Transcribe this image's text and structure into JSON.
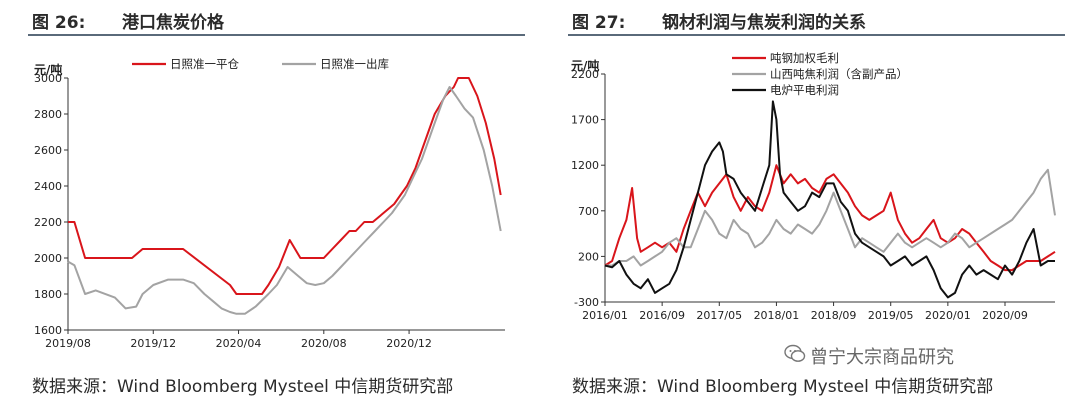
{
  "left": {
    "fig_no": "图 26:",
    "title": "港口焦炭价格",
    "source": "数据来源：Wind Bloomberg Mysteel 中信期货研究部"
  },
  "right": {
    "fig_no": "图 27:",
    "title": "钢材利润与焦炭利润的关系",
    "source": "数据来源：Wind Bloomberg Mysteel 中信期货研究部"
  },
  "watermark": {
    "text": "曾宁大宗商品研究",
    "icon": "wechat-icon"
  },
  "chart_data": [
    {
      "type": "line",
      "ylabel": "元/吨",
      "ylim": [
        1600,
        3000
      ],
      "yticks": [
        1600,
        1800,
        2000,
        2200,
        2400,
        2600,
        2800,
        3000
      ],
      "xticks": [
        "2019/08",
        "2019/12",
        "2020/04",
        "2020/08",
        "2020/12"
      ],
      "xtick_pos": [
        0,
        4,
        8,
        12,
        16
      ],
      "xlim": [
        0,
        20.5
      ],
      "legend_position": "top",
      "grid": false,
      "series": [
        {
          "name": "日照准一平仓",
          "color": "#d9151b",
          "x": [
            0,
            0.3,
            0.8,
            3.0,
            3.5,
            5.4,
            7.6,
            7.9,
            8.3,
            9.1,
            9.4,
            9.9,
            10.4,
            10.9,
            11.5,
            12.0,
            12.4,
            12.8,
            13.2,
            13.5,
            13.9,
            14.3,
            14.8,
            15.3,
            15.6,
            15.9,
            16.3,
            16.6,
            16.9,
            17.2,
            17.7,
            18.1,
            18.3,
            18.8,
            19.2,
            19.6,
            20.0,
            20.3
          ],
          "y": [
            2200,
            2200,
            2000,
            2000,
            2050,
            2050,
            1850,
            1800,
            1800,
            1800,
            1850,
            1950,
            2100,
            2000,
            2000,
            2000,
            2050,
            2100,
            2150,
            2150,
            2200,
            2200,
            2250,
            2300,
            2350,
            2400,
            2500,
            2600,
            2700,
            2800,
            2900,
            2950,
            3000,
            3000,
            2900,
            2750,
            2550,
            2350
          ]
        },
        {
          "name": "日照准一出库",
          "color": "#a3a3a3",
          "x": [
            0,
            0.3,
            0.8,
            1.3,
            2.2,
            2.7,
            3.2,
            3.5,
            4.0,
            4.7,
            5.4,
            5.9,
            6.4,
            6.8,
            7.2,
            7.6,
            7.9,
            8.3,
            8.8,
            9.4,
            9.8,
            10.3,
            10.8,
            11.2,
            11.6,
            12.0,
            12.4,
            12.8,
            13.2,
            13.6,
            14.0,
            14.4,
            14.8,
            15.2,
            15.5,
            15.8,
            16.2,
            16.6,
            16.9,
            17.2,
            17.6,
            17.9,
            18.2,
            18.6,
            19.0,
            19.5,
            19.9,
            20.3
          ],
          "y": [
            1980,
            1960,
            1800,
            1820,
            1780,
            1720,
            1730,
            1800,
            1850,
            1880,
            1880,
            1860,
            1800,
            1760,
            1720,
            1700,
            1690,
            1690,
            1730,
            1800,
            1850,
            1950,
            1900,
            1860,
            1850,
            1860,
            1900,
            1950,
            2000,
            2050,
            2100,
            2150,
            2200,
            2250,
            2300,
            2350,
            2450,
            2550,
            2650,
            2750,
            2880,
            2950,
            2900,
            2830,
            2780,
            2600,
            2400,
            2150
          ]
        }
      ]
    },
    {
      "type": "line",
      "ylabel": "元/吨",
      "ylim": [
        -300,
        2200
      ],
      "yticks": [
        -300,
        200,
        700,
        1200,
        1700,
        2200
      ],
      "xticks": [
        "2016/01",
        "2016/09",
        "2017/05",
        "2018/01",
        "2018/09",
        "2019/05",
        "2020/01",
        "2020/09"
      ],
      "xtick_pos": [
        0,
        8,
        16,
        24,
        32,
        40,
        48,
        56
      ],
      "xlim": [
        0,
        63
      ],
      "legend_position": "top-left",
      "grid": false,
      "series": [
        {
          "name": "吨钢加权毛利",
          "color": "#d9151b",
          "x": [
            0,
            1,
            2,
            3,
            3.8,
            4.5,
            5,
            6,
            7,
            8,
            9,
            10,
            11,
            12,
            13,
            14,
            15,
            16,
            17,
            18,
            19,
            20,
            21,
            22,
            23,
            24,
            25,
            26,
            27,
            28,
            29,
            30,
            31,
            32,
            33,
            34,
            35,
            36,
            37,
            38,
            39,
            40,
            41,
            42,
            43,
            44,
            45,
            46,
            47,
            48,
            49,
            50,
            51,
            52,
            53,
            54,
            55,
            56,
            57,
            58,
            59,
            60,
            61,
            62,
            63
          ],
          "y": [
            100,
            150,
            400,
            600,
            950,
            400,
            250,
            300,
            350,
            300,
            350,
            250,
            500,
            700,
            900,
            750,
            900,
            1000,
            1100,
            850,
            700,
            850,
            750,
            700,
            900,
            1200,
            1000,
            1100,
            1000,
            1050,
            950,
            900,
            1050,
            1100,
            1000,
            900,
            750,
            650,
            600,
            650,
            700,
            900,
            600,
            450,
            350,
            400,
            500,
            600,
            400,
            350,
            400,
            500,
            450,
            350,
            250,
            150,
            100,
            50,
            50,
            100,
            150,
            150,
            150,
            200,
            250
          ]
        },
        {
          "name": "山西吨焦利润（含副产品）",
          "color": "#a3a3a3",
          "x": [
            0,
            1,
            2,
            3,
            4,
            5,
            6,
            7,
            8,
            9,
            10,
            11,
            12,
            13,
            14,
            15,
            16,
            17,
            18,
            19,
            20,
            21,
            22,
            23,
            24,
            25,
            26,
            27,
            28,
            29,
            30,
            31,
            32,
            33,
            34,
            35,
            36,
            37,
            38,
            39,
            40,
            41,
            42,
            43,
            44,
            45,
            46,
            47,
            48,
            49,
            50,
            51,
            52,
            53,
            54,
            55,
            56,
            57,
            58,
            59,
            60,
            61,
            62,
            63
          ],
          "y": [
            100,
            100,
            150,
            150,
            200,
            100,
            150,
            200,
            250,
            350,
            400,
            300,
            300,
            500,
            700,
            600,
            450,
            400,
            600,
            500,
            450,
            300,
            350,
            450,
            600,
            500,
            450,
            550,
            500,
            450,
            550,
            700,
            900,
            700,
            500,
            300,
            400,
            350,
            300,
            250,
            350,
            450,
            350,
            300,
            350,
            400,
            350,
            300,
            350,
            450,
            400,
            300,
            350,
            400,
            450,
            500,
            550,
            600,
            700,
            800,
            900,
            1050,
            1150,
            650
          ]
        },
        {
          "name": "电炉平电利润",
          "color": "#111111",
          "x": [
            0,
            1,
            2,
            3,
            4,
            5,
            6,
            7,
            8,
            9,
            10,
            11,
            12,
            13,
            14,
            15,
            16,
            16.5,
            17,
            18,
            19,
            20,
            21,
            22,
            23,
            23.5,
            24,
            24.5,
            25,
            26,
            27,
            28,
            29,
            30,
            31,
            32,
            33,
            34,
            35,
            36,
            37,
            38,
            39,
            40,
            41,
            42,
            43,
            44,
            45,
            46,
            47,
            48,
            49,
            50,
            51,
            52,
            53,
            54,
            55,
            56,
            57,
            58,
            59,
            60,
            61,
            62,
            63
          ],
          "y": [
            100,
            80,
            150,
            0,
            -100,
            -150,
            -50,
            -200,
            -150,
            -100,
            50,
            300,
            600,
            900,
            1200,
            1350,
            1450,
            1350,
            1100,
            1050,
            900,
            800,
            700,
            950,
            1200,
            1900,
            1700,
            1100,
            900,
            800,
            700,
            750,
            900,
            850,
            1000,
            1000,
            800,
            700,
            450,
            350,
            300,
            250,
            200,
            100,
            150,
            200,
            100,
            150,
            200,
            50,
            -150,
            -250,
            -200,
            0,
            100,
            0,
            50,
            0,
            -50,
            100,
            0,
            150,
            350,
            500,
            100,
            150,
            150
          ]
        }
      ]
    }
  ]
}
